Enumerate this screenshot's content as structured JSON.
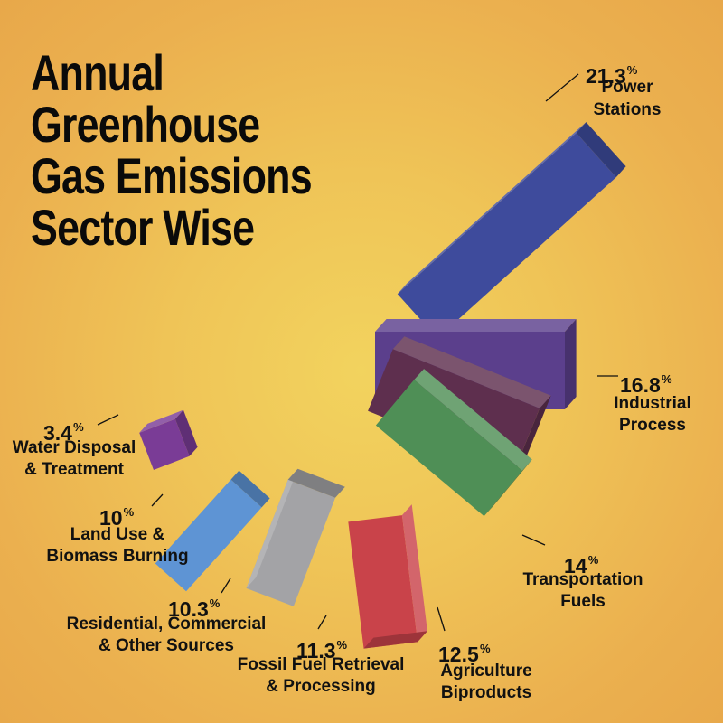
{
  "title": {
    "lines": [
      "Annual",
      "Greenhouse",
      "Gas Emissions",
      "Sector Wise"
    ]
  },
  "chart_data": {
    "type": "bar",
    "title": "Annual Greenhouse Gas Emissions Sector Wise",
    "unit": "%",
    "categories": [
      "Power Stations",
      "Industrial Process",
      "Transportation Fuels",
      "Agriculture Biproducts",
      "Fossil Fuel Retrieval & Processing",
      "Residential, Commercial & Other Sources",
      "Land Use & Biomass Burning",
      "Water Disposal & Treatment"
    ],
    "values": [
      21.3,
      16.8,
      14,
      12.5,
      11.3,
      10.3,
      10,
      3.4
    ],
    "value_labels": [
      "21.3",
      "16.8",
      "14",
      "12.5",
      "11.3",
      "10.3",
      "10",
      "3.4"
    ],
    "label_lines": [
      [
        "Power",
        "Stations"
      ],
      [
        "Industrial",
        "Process"
      ],
      [
        "Transportation",
        "Fuels"
      ],
      [
        "Agriculture",
        "Biproducts"
      ],
      [
        "Fossil Fuel Retrieval",
        "& Processing"
      ],
      [
        "Residential, Commercial",
        "& Other Sources"
      ],
      [
        "Land Use &",
        "Biomass Burning"
      ],
      [
        "Water Disposal",
        "& Treatment"
      ]
    ],
    "colors": [
      "#3e4b9c",
      "#5b3f8c",
      "#5e2f4e",
      "#4f8f56",
      "#c9434a",
      "#a3a3a6",
      "#5e94d4",
      "#7a3c96"
    ]
  }
}
